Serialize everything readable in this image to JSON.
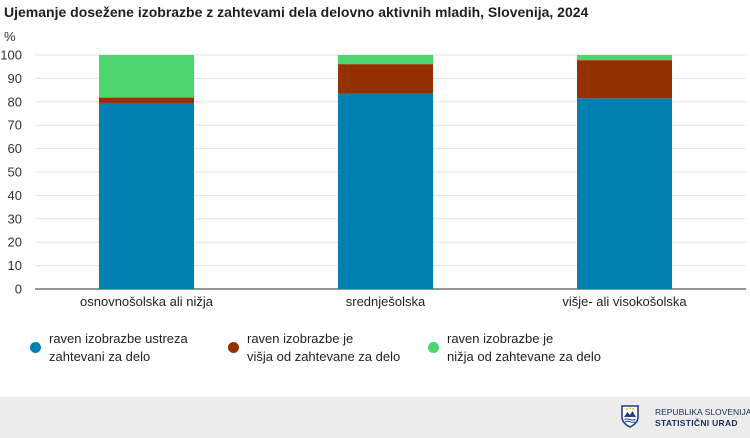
{
  "chart_data": {
    "type": "bar",
    "stacked": true,
    "title": "Ujemanje dosežene izobrazbe z zahtevami dela delovno aktivnih mladih, Slovenija, 2024",
    "ylabel": "%",
    "xlabel": "",
    "ylim": [
      0,
      100
    ],
    "yticks": [
      0,
      10,
      20,
      30,
      40,
      50,
      60,
      70,
      80,
      90,
      100
    ],
    "grid": true,
    "legend_position": "bottom",
    "categories": [
      "osnovnošolska ali nižja",
      "srednješolska",
      "višje- ali visokošolska"
    ],
    "series": [
      {
        "name": "raven izobrazbe ustreza\nzahtevani za delo",
        "color": "#0080b0",
        "values": [
          79.5,
          83.5,
          81.5
        ]
      },
      {
        "name": "raven izobrazbe je\nvišja od zahtevane za delo",
        "color": "#953100",
        "values": [
          2.3,
          12.6,
          16.3
        ]
      },
      {
        "name": "raven izobrazbe je\nnižja od zahtevane za  delo",
        "color": "#4cd56f",
        "values": [
          18.2,
          3.9,
          2.2
        ]
      }
    ]
  },
  "footer": {
    "org_line1": "REPUBLIKA SLOVENIJA",
    "org_line2": "STATISTIČNI URAD",
    "logo_icon": "shield-logo-icon"
  }
}
